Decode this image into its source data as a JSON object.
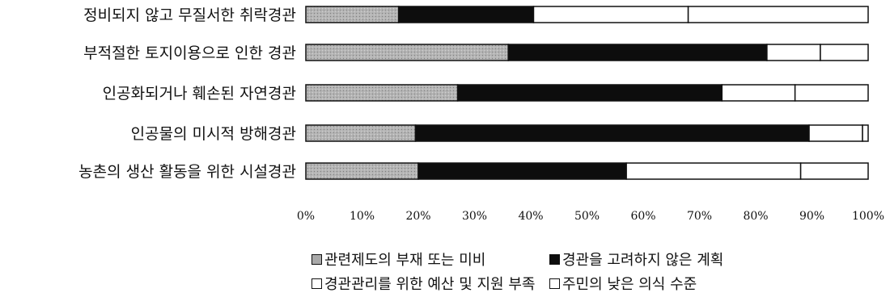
{
  "chart_data": {
    "type": "bar",
    "orientation": "horizontal",
    "stacked": true,
    "percent": true,
    "categories": [
      "정비되지 않고 무질서한 취락경관",
      "부적절한 토지이용으로 인한 경관",
      "인공화되거나 훼손된 자연경관",
      "인공물의 미시적 방해경관",
      "농촌의 생산 활동을 위한 시설경관"
    ],
    "series": [
      {
        "name": "관련제도의 부재 또는 미비",
        "color": "#a9a9a9",
        "values": [
          16.5,
          36,
          27,
          19.5,
          20
        ]
      },
      {
        "name": "경관을 고려하지 않은 계획",
        "color": "#0d0d0d",
        "values": [
          24,
          46,
          47,
          70,
          37
        ]
      },
      {
        "name": "경관관리를 위한 예산 및 지원 부족",
        "color": "#ffffff",
        "values": [
          27.5,
          9.5,
          13,
          9.5,
          31
        ]
      },
      {
        "name": "주민의 낮은 의식 수준",
        "color": "#ffffff",
        "values": [
          32,
          8.5,
          13,
          1,
          12
        ]
      }
    ],
    "xlim": [
      0,
      100
    ],
    "xticks": [
      "0%",
      "10%",
      "20%",
      "30%",
      "40%",
      "50%",
      "60%",
      "70%",
      "80%",
      "90%",
      "100%"
    ],
    "legend_position": "bottom",
    "grid": false
  }
}
